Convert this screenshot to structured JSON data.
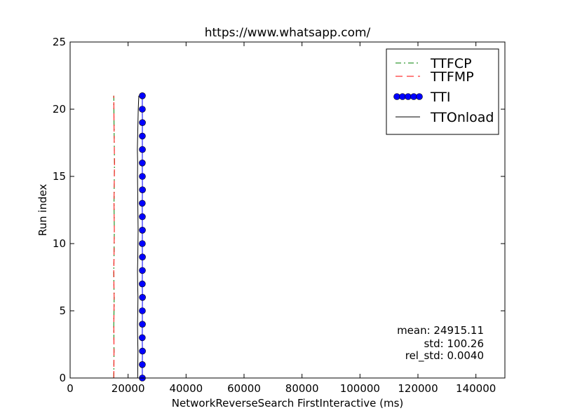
{
  "chart_data": {
    "type": "line",
    "title": "https://www.whatsapp.com/",
    "xlabel": "NetworkReverseSearch FirstInteractive (ms)",
    "ylabel": "Run index",
    "xlim": [
      0,
      150000
    ],
    "ylim": [
      0,
      25
    ],
    "x_ticks": [
      0,
      20000,
      40000,
      60000,
      80000,
      100000,
      120000,
      140000
    ],
    "y_ticks": [
      0,
      5,
      10,
      15,
      20,
      25
    ],
    "grid": false,
    "legend_position": "top-right",
    "legend": [
      "TTFCP",
      "TTFMP",
      "TTI",
      "TTOnload"
    ],
    "runs": [
      0,
      1,
      2,
      3,
      4,
      5,
      6,
      7,
      8,
      9,
      10,
      11,
      12,
      13,
      14,
      15,
      16,
      17,
      18,
      19,
      20,
      21
    ],
    "series": [
      {
        "name": "TTFCP",
        "color": "#008000",
        "style": "dashdot",
        "values": [
          15050,
          15100,
          15150,
          15100,
          15050,
          15150,
          15200,
          15100,
          15050,
          15150,
          15200,
          15250,
          15200,
          15150,
          15200,
          15250,
          15300,
          15250,
          15200,
          15150,
          15100,
          15050
        ]
      },
      {
        "name": "TTFMP",
        "color": "#ff0000",
        "style": "dashed",
        "values": [
          15050,
          15100,
          15150,
          15100,
          15050,
          15150,
          15200,
          15100,
          15050,
          15150,
          15200,
          15250,
          15200,
          15150,
          15200,
          15250,
          15300,
          15250,
          15200,
          15150,
          15100,
          15050
        ]
      },
      {
        "name": "TTI",
        "color": "#0000ff",
        "style": "markers",
        "values": [
          24920,
          24900,
          24950,
          24880,
          24930,
          24910,
          24960,
          24890,
          24920,
          24940,
          24900,
          24930,
          24910,
          24880,
          24950,
          24920,
          24900,
          24930,
          24910,
          24940,
          24900,
          24920
        ]
      },
      {
        "name": "TTOnload",
        "color": "#000000",
        "style": "solid",
        "values": [
          23300,
          23350,
          23400,
          23300,
          23250,
          23350,
          23400,
          23300,
          23250,
          23350,
          23400,
          23450,
          23400,
          23350,
          23300,
          23250,
          23300,
          23200,
          23300,
          23400,
          23500,
          23700
        ]
      }
    ],
    "stats": {
      "mean": "mean: 24915.11",
      "std": "std: 100.26",
      "rel_std": "rel_std: 0.0040"
    }
  }
}
